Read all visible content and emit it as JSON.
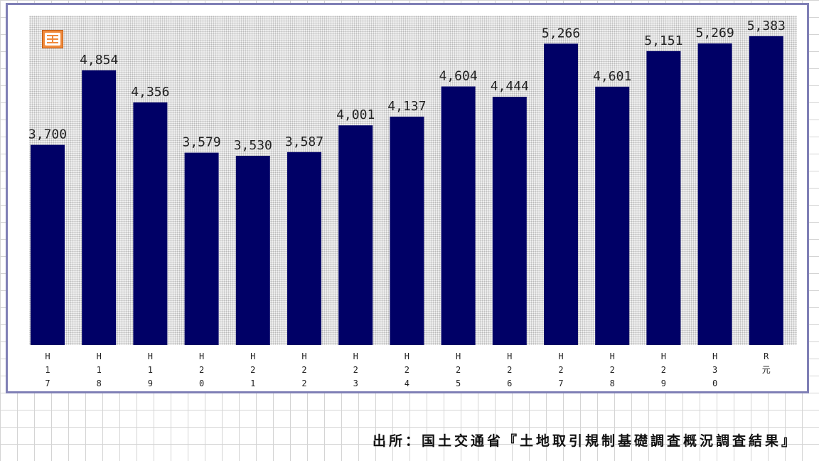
{
  "chart_data": {
    "type": "bar",
    "categories": [
      "H17",
      "H18",
      "H19",
      "H20",
      "H21",
      "H22",
      "H23",
      "H24",
      "H25",
      "H26",
      "H27",
      "H28",
      "H29",
      "H30",
      "R元"
    ],
    "tick_labels": [
      [
        "H",
        "1",
        "7"
      ],
      [
        "H",
        "1",
        "8"
      ],
      [
        "H",
        "1",
        "9"
      ],
      [
        "H",
        "2",
        "0"
      ],
      [
        "H",
        "2",
        "1"
      ],
      [
        "H",
        "2",
        "2"
      ],
      [
        "H",
        "2",
        "3"
      ],
      [
        "H",
        "2",
        "4"
      ],
      [
        "H",
        "2",
        "5"
      ],
      [
        "H",
        "2",
        "6"
      ],
      [
        "H",
        "2",
        "7"
      ],
      [
        "H",
        "2",
        "8"
      ],
      [
        "H",
        "2",
        "9"
      ],
      [
        "H",
        "3",
        "0"
      ],
      [
        "R",
        "元"
      ]
    ],
    "values": [
      3700,
      4854,
      4356,
      3579,
      3530,
      3587,
      4001,
      4137,
      4604,
      4444,
      5266,
      4601,
      5151,
      5269,
      5383
    ],
    "value_labels": [
      "3,700",
      "4,854",
      "4,356",
      "3,579",
      "3,530",
      "3,587",
      "4,001",
      "4,137",
      "4,604",
      "4,444",
      "5,266",
      "4,601",
      "5,151",
      "5,269",
      "5,383"
    ],
    "ylim": [
      600,
      5700
    ],
    "grid": false,
    "legend": "none",
    "title": "",
    "xlabel": "",
    "ylabel": ""
  },
  "colors": {
    "bar": "#000066",
    "frame": "#7f7fb5",
    "badge": "#f08a3c"
  },
  "badge_icon": "new-icon",
  "source_note": "出所：国土交通省『土地取引規制基礎調査概況調査結果』"
}
